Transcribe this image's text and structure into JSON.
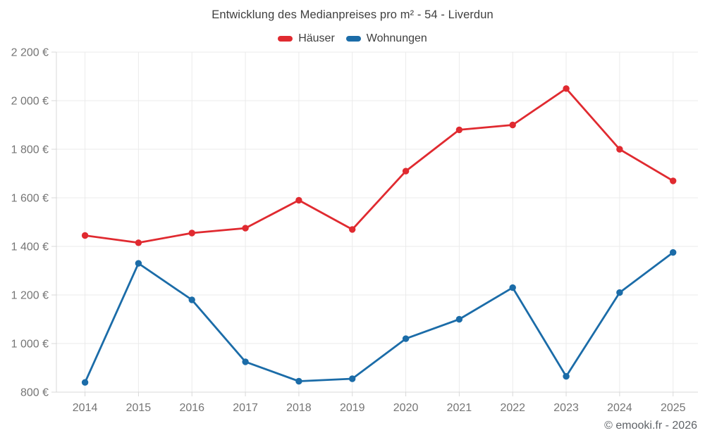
{
  "title": "Entwicklung des Medianpreises pro m² - 54 - Liverdun",
  "footer": "© emooki.fr - 2026",
  "legend": {
    "items": [
      {
        "label": "Häuser",
        "slug": "haeuser",
        "color": "#e02a30"
      },
      {
        "label": "Wohnungen",
        "slug": "wohnungen",
        "color": "#1b6ca8"
      }
    ]
  },
  "chart_data": {
    "type": "line",
    "title": "Entwicklung des Medianpreises pro m² - 54 - Liverdun",
    "categories": [
      "2014",
      "2015",
      "2016",
      "2017",
      "2018",
      "2019",
      "2020",
      "2021",
      "2022",
      "2023",
      "2024",
      "2025"
    ],
    "series": [
      {
        "name": "Häuser",
        "slug": "haeuser",
        "color": "#e02a30",
        "values": [
          1445,
          1415,
          1455,
          1475,
          1590,
          1470,
          1710,
          1880,
          1900,
          2050,
          1800,
          1670
        ]
      },
      {
        "name": "Wohnungen",
        "slug": "wohnungen",
        "color": "#1b6ca8",
        "values": [
          840,
          1330,
          1180,
          925,
          845,
          855,
          1020,
          1100,
          1230,
          865,
          1210,
          1375
        ]
      }
    ],
    "xlabel": "",
    "ylabel": "",
    "ylim": [
      800,
      2200
    ],
    "ytick_step": 200,
    "ytick_suffix": " €",
    "grid": true,
    "legend_position": "top",
    "marker": "circle"
  },
  "colors": {
    "grid": "#ebebeb",
    "axis": "#d8d8d8",
    "tick_text": "#757575",
    "title_text": "#3f3f3f",
    "footer_text": "#5f6368",
    "background": "#ffffff"
  }
}
